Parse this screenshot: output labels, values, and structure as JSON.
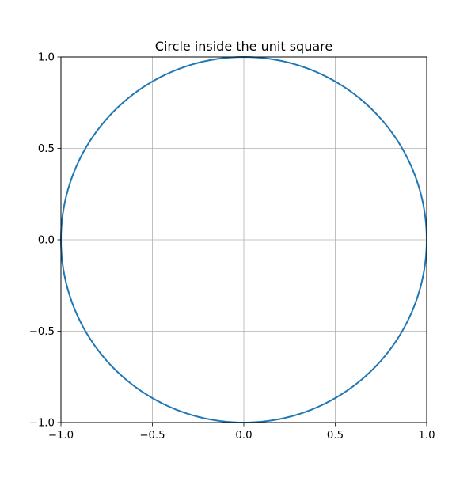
{
  "chart_data": {
    "type": "line",
    "title": "Circle inside the unit square",
    "xlabel": "",
    "ylabel": "",
    "xlim": [
      -1.0,
      1.0
    ],
    "ylim": [
      -1.0,
      1.0
    ],
    "grid": true,
    "aspect": "equal",
    "x_ticks": [
      -1.0,
      -0.5,
      0.0,
      0.5,
      1.0
    ],
    "x_tick_labels": [
      "−1.0",
      "−0.5",
      "0.0",
      "0.5",
      "1.0"
    ],
    "y_ticks": [
      -1.0,
      -0.5,
      0.0,
      0.5,
      1.0
    ],
    "y_tick_labels": [
      "−1.0",
      "−0.5",
      "0.0",
      "0.5",
      "1.0"
    ],
    "series": [
      {
        "shape": "circle",
        "center": [
          0.0,
          0.0
        ],
        "radius": 1.0,
        "color": "#1f77b4"
      }
    ]
  }
}
